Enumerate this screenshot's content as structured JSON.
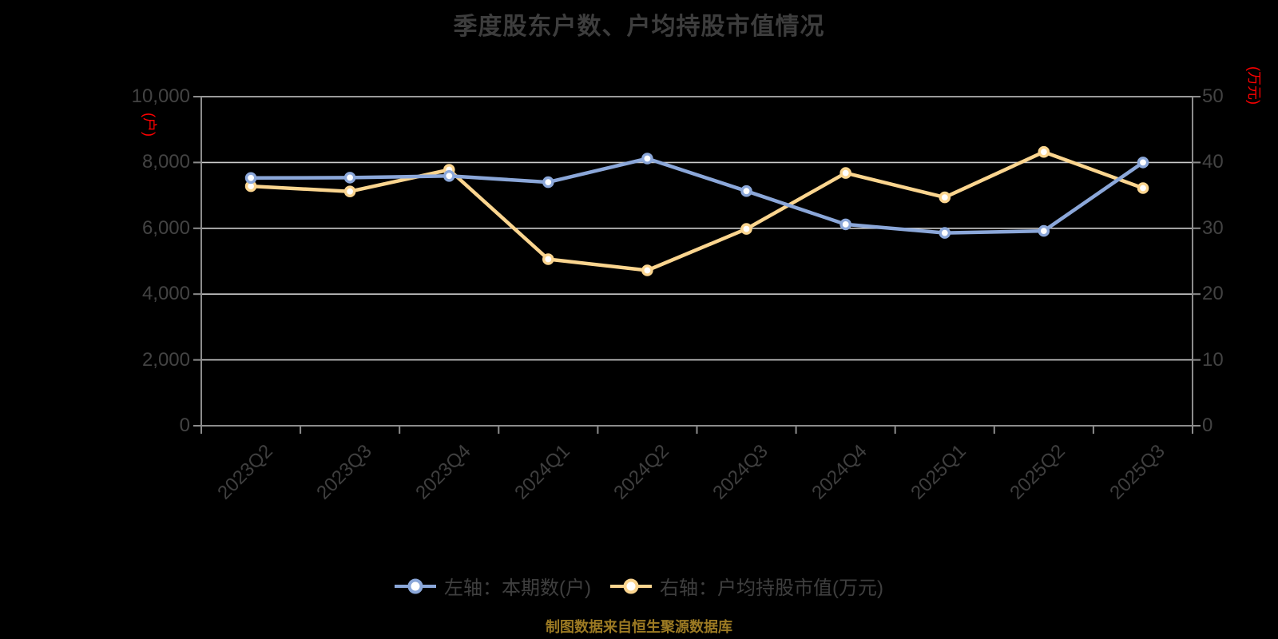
{
  "title": "季度股东户数、户均持股市值情况",
  "footer": "制图数据来自恒生聚源数据库",
  "colors": {
    "background": "#000000",
    "title_text": "#3d3d3d",
    "axis_text": "#434343",
    "axis_line": "#8c8c8c",
    "gridline": "#cdcdcd",
    "unit_label": "#ff0000",
    "series_left": "#8BA7D9",
    "series_right": "#FBD58F",
    "marker_fill": "#ffffff",
    "footer_text": "#9c7a23"
  },
  "chart_data": {
    "type": "line",
    "title": "季度股东户数、户均持股市值情况",
    "categories": [
      "2023Q2",
      "2023Q3",
      "2023Q4",
      "2024Q1",
      "2024Q2",
      "2024Q3",
      "2024Q4",
      "2025Q1",
      "2025Q2",
      "2025Q3"
    ],
    "series": [
      {
        "name": "左轴：本期数(户)",
        "axis": "left",
        "color": "#8BA7D9",
        "values": [
          7530,
          7540,
          7590,
          7400,
          8120,
          7130,
          6120,
          5860,
          5920,
          8000
        ]
      },
      {
        "name": "右轴：户均持股市值(万元)",
        "axis": "right",
        "color": "#FBD58F",
        "values": [
          36.4,
          35.6,
          38.9,
          25.3,
          23.6,
          29.9,
          38.4,
          34.7,
          41.6,
          36.1
        ]
      }
    ],
    "left_axis": {
      "unit": "(户)",
      "min": 0,
      "max": 10000,
      "tick_values": [
        0,
        2000,
        4000,
        6000,
        8000,
        10000
      ],
      "tick_labels": [
        "0",
        "2,000",
        "4,000",
        "6,000",
        "8,000",
        "10,000"
      ]
    },
    "right_axis": {
      "unit": "(万元)",
      "min": 0,
      "max": 50,
      "tick_values": [
        0,
        10,
        20,
        30,
        40,
        50
      ],
      "tick_labels": [
        "0",
        "10",
        "20",
        "30",
        "40",
        "50"
      ]
    },
    "grid": true,
    "legend_position": "bottom"
  },
  "legend": {
    "items": [
      {
        "label": "左轴：本期数(户)",
        "color": "#8BA7D9"
      },
      {
        "label": "右轴：户均持股市值(万元)",
        "color": "#FBD58F"
      }
    ]
  }
}
